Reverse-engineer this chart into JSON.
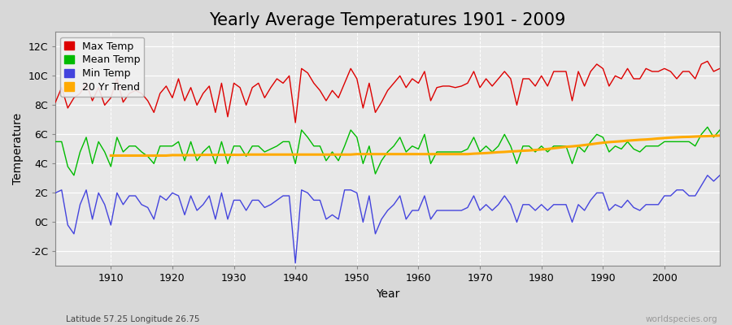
{
  "title": "Yearly Average Temperatures 1901 - 2009",
  "xlabel": "Year",
  "ylabel": "Temperature",
  "subtitle_left": "Latitude 57.25 Longitude 26.75",
  "subtitle_right": "worldspecies.org",
  "years": [
    1901,
    1902,
    1903,
    1904,
    1905,
    1906,
    1907,
    1908,
    1909,
    1910,
    1911,
    1912,
    1913,
    1914,
    1915,
    1916,
    1917,
    1918,
    1919,
    1920,
    1921,
    1922,
    1923,
    1924,
    1925,
    1926,
    1927,
    1928,
    1929,
    1930,
    1931,
    1932,
    1933,
    1934,
    1935,
    1936,
    1937,
    1938,
    1939,
    1940,
    1941,
    1942,
    1943,
    1944,
    1945,
    1946,
    1947,
    1948,
    1949,
    1950,
    1951,
    1952,
    1953,
    1954,
    1955,
    1956,
    1957,
    1958,
    1959,
    1960,
    1961,
    1962,
    1963,
    1964,
    1965,
    1966,
    1967,
    1968,
    1969,
    1970,
    1971,
    1972,
    1973,
    1974,
    1975,
    1976,
    1977,
    1978,
    1979,
    1980,
    1981,
    1982,
    1983,
    1984,
    1985,
    1986,
    1987,
    1988,
    1989,
    1990,
    1991,
    1992,
    1993,
    1994,
    1995,
    1996,
    1997,
    1998,
    1999,
    2000,
    2001,
    2002,
    2003,
    2004,
    2005,
    2006,
    2007,
    2008,
    2009
  ],
  "max_temp": [
    8.2,
    9.2,
    7.8,
    8.5,
    8.8,
    9.5,
    8.3,
    9.2,
    8.0,
    8.5,
    9.8,
    8.2,
    8.8,
    9.0,
    8.8,
    8.3,
    7.5,
    8.8,
    9.3,
    8.5,
    9.8,
    8.3,
    9.2,
    8.0,
    8.8,
    9.3,
    7.5,
    9.5,
    7.2,
    9.5,
    9.2,
    8.0,
    9.2,
    9.5,
    8.5,
    9.2,
    9.8,
    9.5,
    10.0,
    6.8,
    10.5,
    10.2,
    9.5,
    9.0,
    8.3,
    9.0,
    8.5,
    9.5,
    10.5,
    9.8,
    7.8,
    9.5,
    7.5,
    8.2,
    9.0,
    9.5,
    10.0,
    9.2,
    9.8,
    9.5,
    10.3,
    8.3,
    9.2,
    9.3,
    9.3,
    9.2,
    9.3,
    9.5,
    10.3,
    9.2,
    9.8,
    9.3,
    9.8,
    10.3,
    9.8,
    8.0,
    9.8,
    9.8,
    9.3,
    10.0,
    9.3,
    10.3,
    10.3,
    10.3,
    8.3,
    10.3,
    9.3,
    10.3,
    10.8,
    10.5,
    9.3,
    10.0,
    9.8,
    10.5,
    9.8,
    9.8,
    10.5,
    10.3,
    10.3,
    10.5,
    10.3,
    9.8,
    10.3,
    10.3,
    9.8,
    10.8,
    11.0,
    10.3,
    10.5
  ],
  "mean_temp": [
    5.5,
    5.5,
    3.8,
    3.2,
    4.8,
    5.8,
    4.0,
    5.5,
    4.8,
    3.8,
    5.8,
    4.8,
    5.2,
    5.2,
    4.8,
    4.5,
    4.0,
    5.2,
    5.2,
    5.2,
    5.5,
    4.2,
    5.5,
    4.2,
    4.8,
    5.2,
    4.0,
    5.5,
    4.0,
    5.2,
    5.2,
    4.5,
    5.2,
    5.2,
    4.8,
    5.0,
    5.2,
    5.5,
    5.5,
    4.0,
    6.3,
    5.8,
    5.2,
    5.2,
    4.2,
    4.8,
    4.2,
    5.2,
    6.3,
    5.8,
    4.0,
    5.2,
    3.3,
    4.2,
    4.8,
    5.2,
    5.8,
    4.8,
    5.2,
    5.0,
    6.0,
    4.0,
    4.8,
    4.8,
    4.8,
    4.8,
    4.8,
    5.0,
    5.8,
    4.8,
    5.2,
    4.8,
    5.2,
    6.0,
    5.2,
    4.0,
    5.2,
    5.2,
    4.8,
    5.2,
    4.8,
    5.2,
    5.2,
    5.2,
    4.0,
    5.2,
    4.8,
    5.5,
    6.0,
    5.8,
    4.8,
    5.2,
    5.0,
    5.5,
    5.0,
    4.8,
    5.2,
    5.2,
    5.2,
    5.5,
    5.5,
    5.5,
    5.5,
    5.5,
    5.2,
    6.0,
    6.5,
    5.8,
    6.3
  ],
  "min_temp": [
    2.0,
    2.2,
    -0.2,
    -0.8,
    1.2,
    2.2,
    0.2,
    2.0,
    1.2,
    -0.2,
    2.0,
    1.2,
    1.8,
    1.8,
    1.2,
    1.0,
    0.2,
    1.8,
    1.5,
    2.0,
    1.8,
    0.5,
    1.8,
    0.8,
    1.2,
    1.8,
    0.2,
    2.0,
    0.2,
    1.5,
    1.5,
    0.8,
    1.5,
    1.5,
    1.0,
    1.2,
    1.5,
    1.8,
    1.8,
    -2.8,
    2.2,
    2.0,
    1.5,
    1.5,
    0.2,
    0.5,
    0.2,
    2.2,
    2.2,
    2.0,
    0.0,
    1.8,
    -0.8,
    0.2,
    0.8,
    1.2,
    1.8,
    0.2,
    0.8,
    0.8,
    1.8,
    0.2,
    0.8,
    0.8,
    0.8,
    0.8,
    0.8,
    1.0,
    1.8,
    0.8,
    1.2,
    0.8,
    1.2,
    1.8,
    1.2,
    0.0,
    1.2,
    1.2,
    0.8,
    1.2,
    0.8,
    1.2,
    1.2,
    1.2,
    0.0,
    1.2,
    0.8,
    1.5,
    2.0,
    2.0,
    0.8,
    1.2,
    1.0,
    1.5,
    1.0,
    0.8,
    1.2,
    1.2,
    1.2,
    1.8,
    1.8,
    2.2,
    2.2,
    1.8,
    1.8,
    2.5,
    3.2,
    2.8,
    3.2
  ],
  "trend_years": [
    1910,
    1911,
    1912,
    1913,
    1914,
    1915,
    1916,
    1917,
    1918,
    1919,
    1920,
    1921,
    1922,
    1923,
    1924,
    1925,
    1926,
    1927,
    1928,
    1929,
    1930,
    1931,
    1932,
    1933,
    1934,
    1935,
    1936,
    1937,
    1938,
    1939,
    1940,
    1941,
    1942,
    1943,
    1944,
    1945,
    1946,
    1947,
    1948,
    1949,
    1950,
    1951,
    1952,
    1953,
    1954,
    1955,
    1956,
    1957,
    1958,
    1959,
    1960,
    1961,
    1962,
    1963,
    1964,
    1965,
    1966,
    1967,
    1968,
    1969,
    1970,
    1971,
    1972,
    1973,
    1974,
    1975,
    1976,
    1977,
    1978,
    1979,
    1980,
    1981,
    1982,
    1983,
    1984,
    1985,
    1986,
    1987,
    1988,
    1989,
    1990,
    1991,
    1992,
    1993,
    1994,
    1995,
    1996,
    1997,
    1998,
    1999,
    2000,
    2001,
    2002,
    2003,
    2004,
    2005,
    2006,
    2007,
    2008,
    2009
  ],
  "trend_temp": [
    4.55,
    4.55,
    4.55,
    4.55,
    4.55,
    4.55,
    4.55,
    4.55,
    4.55,
    4.55,
    4.58,
    4.58,
    4.58,
    4.58,
    4.58,
    4.6,
    4.6,
    4.6,
    4.6,
    4.6,
    4.6,
    4.6,
    4.62,
    4.62,
    4.62,
    4.62,
    4.62,
    4.62,
    4.62,
    4.62,
    4.62,
    4.62,
    4.62,
    4.62,
    4.62,
    4.62,
    4.62,
    4.62,
    4.62,
    4.62,
    4.65,
    4.65,
    4.65,
    4.65,
    4.65,
    4.65,
    4.65,
    4.65,
    4.65,
    4.65,
    4.65,
    4.65,
    4.65,
    4.65,
    4.65,
    4.65,
    4.65,
    4.65,
    4.65,
    4.68,
    4.7,
    4.72,
    4.75,
    4.78,
    4.8,
    4.83,
    4.85,
    4.88,
    4.9,
    4.93,
    4.97,
    5.0,
    5.05,
    5.1,
    5.15,
    5.18,
    5.22,
    5.27,
    5.32,
    5.38,
    5.43,
    5.47,
    5.5,
    5.53,
    5.57,
    5.6,
    5.63,
    5.65,
    5.68,
    5.72,
    5.75,
    5.78,
    5.8,
    5.82,
    5.83,
    5.85,
    5.87,
    5.88,
    5.9,
    5.92
  ],
  "max_color": "#dd0000",
  "mean_color": "#00bb00",
  "min_color": "#4444dd",
  "trend_color": "#ffaa00",
  "bg_color": "#d8d8d8",
  "plot_bg_color": "#e8e8e8",
  "grid_color": "#ffffff",
  "ylim": [
    -3,
    13
  ],
  "yticks": [
    -2,
    0,
    2,
    4,
    6,
    8,
    10,
    12
  ],
  "ytick_labels": [
    "-2C",
    "0C",
    "2C",
    "4C",
    "6C",
    "8C",
    "10C",
    "12C"
  ],
  "xticks": [
    1910,
    1920,
    1930,
    1940,
    1950,
    1960,
    1970,
    1980,
    1990,
    2000
  ],
  "line_width": 1.0,
  "title_fontsize": 15,
  "label_fontsize": 10,
  "tick_fontsize": 9
}
